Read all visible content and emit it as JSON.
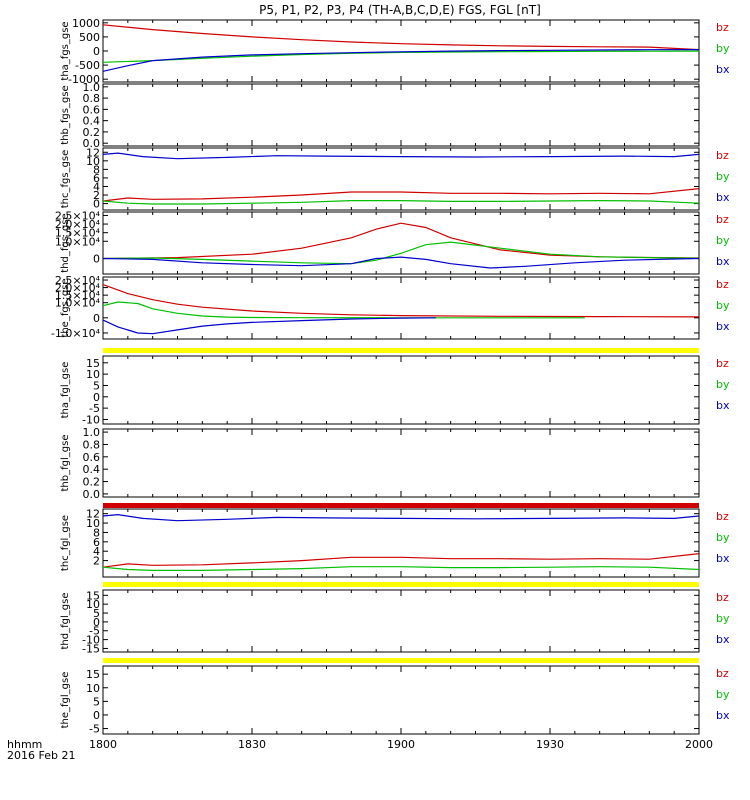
{
  "title": "P5, P1, P2, P3, P4 (TH-A,B,C,D,E) FGS, FGL [nT]",
  "time_label": "hhmm",
  "date_label": "2016 Feb 21",
  "time_ticks": [
    "1800",
    "1830",
    "1900",
    "1930",
    "2000"
  ],
  "colors": {
    "bz": "#d00000",
    "by": "#00c000",
    "bx": "#0000cc",
    "flag": "#ffff00"
  },
  "chart_data": [
    {
      "type": "line",
      "name": "tha_fgs_gse",
      "ylabel": "tha_fgs_gse",
      "ylim": [
        -1100,
        1100
      ],
      "yticks": [
        "1000",
        "500",
        "0",
        "-500",
        "-1000"
      ],
      "legend": [
        "bz",
        "by",
        "bx"
      ],
      "x_minutes": [
        0,
        120
      ],
      "series": [
        {
          "name": "bz",
          "x": [
            0,
            10,
            20,
            30,
            40,
            50,
            60,
            70,
            80,
            90,
            100,
            110,
            120
          ],
          "values": [
            930,
            760,
            620,
            500,
            400,
            320,
            260,
            215,
            185,
            165,
            150,
            140,
            50
          ]
        },
        {
          "name": "by",
          "x": [
            0,
            10,
            20,
            30,
            40,
            50,
            60,
            70,
            80,
            90,
            100,
            110,
            120
          ],
          "values": [
            -400,
            -340,
            -260,
            -185,
            -125,
            -80,
            -50,
            -35,
            -25,
            -18,
            -12,
            -8,
            -5
          ]
        },
        {
          "name": "bx",
          "x": [
            0,
            5,
            10,
            20,
            30,
            40,
            50,
            60,
            70,
            80,
            90,
            100,
            110,
            120
          ],
          "values": [
            -720,
            -520,
            -340,
            -215,
            -140,
            -95,
            -60,
            -30,
            -5,
            15,
            25,
            35,
            45,
            50
          ]
        }
      ]
    },
    {
      "type": "line",
      "name": "thb_fgs_gse",
      "ylabel": "thb_fgs_gse",
      "ylim": [
        -0.05,
        1.05
      ],
      "yticks": [
        "1.0",
        "0.8",
        "0.6",
        "0.4",
        "0.2",
        "0.0"
      ],
      "legend": [],
      "series": []
    },
    {
      "type": "line",
      "name": "thc_fgs_gse",
      "ylabel": "thc_fgs_gse",
      "ylim": [
        -1.5,
        13
      ],
      "yticks": [
        "12",
        "10",
        "8",
        "6",
        "4",
        "2",
        "0"
      ],
      "legend": [
        "bz",
        "by",
        "bx"
      ],
      "series": [
        {
          "name": "bx",
          "x": [
            0,
            3,
            8,
            15,
            25,
            35,
            45,
            60,
            75,
            90,
            105,
            115,
            120
          ],
          "values": [
            11.5,
            11.8,
            11.0,
            10.5,
            10.8,
            11.2,
            11.1,
            11.0,
            10.9,
            11.0,
            11.1,
            11.0,
            11.5
          ]
        },
        {
          "name": "bz",
          "x": [
            0,
            5,
            10,
            20,
            30,
            40,
            50,
            60,
            70,
            80,
            90,
            100,
            110,
            120
          ],
          "values": [
            0.6,
            1.3,
            1.0,
            1.1,
            1.5,
            2.0,
            2.7,
            2.7,
            2.4,
            2.4,
            2.3,
            2.4,
            2.3,
            3.5
          ]
        },
        {
          "name": "by",
          "x": [
            0,
            5,
            10,
            20,
            30,
            40,
            50,
            60,
            70,
            80,
            90,
            100,
            110,
            120
          ],
          "values": [
            0.6,
            0.1,
            -0.1,
            -0.1,
            0.1,
            0.3,
            0.7,
            0.7,
            0.5,
            0.5,
            0.6,
            0.7,
            0.6,
            0.1
          ]
        }
      ]
    },
    {
      "type": "line",
      "name": "thd_fgs_gse",
      "ylabel": "thd_fgs_gse",
      "ylim": [
        -9000,
        27000
      ],
      "yticks": [
        "2.5×10⁴",
        "2.0×10⁴",
        "1.5×10⁴",
        "1.0×10⁴",
        "5.0×10³",
        "0",
        "-5.0×10³"
      ],
      "legend": [
        "bz",
        "by",
        "bx"
      ],
      "series": [
        {
          "name": "bz",
          "x": [
            0,
            15,
            30,
            40,
            50,
            55,
            60,
            65,
            70,
            80,
            90,
            100,
            110,
            120
          ],
          "values": [
            0,
            500,
            2500,
            6000,
            12000,
            17000,
            20500,
            18000,
            12000,
            5000,
            2000,
            1000,
            600,
            300
          ]
        },
        {
          "name": "by",
          "x": [
            0,
            10,
            20,
            30,
            40,
            50,
            55,
            60,
            65,
            70,
            80,
            90,
            100,
            110,
            120
          ],
          "values": [
            0,
            300,
            -500,
            -1500,
            -2500,
            -3000,
            -1000,
            3000,
            8000,
            9500,
            6000,
            2500,
            1000,
            500,
            200
          ]
        },
        {
          "name": "bx",
          "x": [
            0,
            10,
            20,
            30,
            40,
            50,
            55,
            60,
            65,
            70,
            78,
            85,
            95,
            105,
            115,
            120
          ],
          "values": [
            0,
            -500,
            -2500,
            -3500,
            -4200,
            -3000,
            0,
            800,
            -500,
            -3000,
            -5500,
            -4500,
            -2500,
            -1000,
            -300,
            0
          ]
        }
      ]
    },
    {
      "type": "line",
      "name": "the_fgs_gse",
      "ylabel": "the_fgs_gse",
      "ylim": [
        -14000,
        27000
      ],
      "yticks": [
        "2.5×10⁴",
        "2.0×10⁴",
        "1.5×10⁴",
        "1.0×10⁴",
        "5.0×10³",
        "0",
        "-5.0×10³",
        "-1.0×10⁴"
      ],
      "legend": [
        "bz",
        "by",
        "bx"
      ],
      "series": [
        {
          "name": "bz",
          "x": [
            0,
            5,
            10,
            15,
            20,
            30,
            40,
            50,
            60,
            80,
            100,
            120
          ],
          "values": [
            22000,
            16000,
            12000,
            9000,
            7000,
            4500,
            3000,
            2000,
            1500,
            1000,
            800,
            600
          ]
        },
        {
          "name": "by",
          "x": [
            0,
            3,
            7,
            10,
            15,
            20,
            25,
            30,
            40,
            60,
            80,
            97
          ],
          "values": [
            8000,
            10500,
            9500,
            6000,
            3000,
            1200,
            500,
            200,
            100,
            0,
            0,
            0
          ]
        },
        {
          "name": "bx",
          "x": [
            0,
            3,
            7,
            10,
            15,
            20,
            25,
            30,
            40,
            50,
            60,
            67
          ],
          "values": [
            -1500,
            -6000,
            -10000,
            -10500,
            -8000,
            -5500,
            -4000,
            -3000,
            -1800,
            -800,
            -200,
            0
          ]
        }
      ]
    },
    {
      "type": "line",
      "name": "tha_fgl_gse",
      "ylabel": "tha_fgl_gse",
      "ylim": [
        -12,
        18
      ],
      "yticks": [
        "15",
        "10",
        "5",
        "0",
        "-5",
        "-10"
      ],
      "legend": [
        "bz",
        "by",
        "bx"
      ],
      "series": []
    },
    {
      "type": "line",
      "name": "thb_fgl_gse",
      "ylabel": "thb_fgl_gse",
      "ylim": [
        -0.05,
        1.05
      ],
      "yticks": [
        "1.0",
        "0.8",
        "0.6",
        "0.4",
        "0.2",
        "0.0"
      ],
      "legend": [],
      "series": []
    },
    {
      "type": "line",
      "name": "thc_fgl_gse",
      "ylabel": "thc_fgl_gse",
      "ylim": [
        -1.5,
        13
      ],
      "yticks": [
        "12",
        "10",
        "8",
        "6",
        "4",
        "2"
      ],
      "legend": [
        "bz",
        "by",
        "bx"
      ],
      "series": [
        {
          "name": "bx",
          "x": [
            0,
            3,
            8,
            15,
            25,
            35,
            45,
            60,
            75,
            90,
            105,
            115,
            120
          ],
          "values": [
            11.5,
            11.8,
            11.0,
            10.5,
            10.8,
            11.2,
            11.1,
            11.0,
            10.9,
            11.0,
            11.1,
            11.0,
            11.5
          ]
        },
        {
          "name": "bz",
          "x": [
            0,
            5,
            10,
            20,
            30,
            40,
            50,
            60,
            70,
            80,
            90,
            100,
            110,
            120
          ],
          "values": [
            0.6,
            1.3,
            1.0,
            1.1,
            1.5,
            2.0,
            2.7,
            2.7,
            2.4,
            2.4,
            2.3,
            2.4,
            2.3,
            3.5
          ]
        },
        {
          "name": "by",
          "x": [
            0,
            5,
            10,
            20,
            30,
            40,
            50,
            60,
            70,
            80,
            90,
            100,
            110,
            120
          ],
          "values": [
            0.6,
            0.1,
            -0.1,
            -0.1,
            0.1,
            0.3,
            0.7,
            0.7,
            0.5,
            0.5,
            0.6,
            0.7,
            0.6,
            0.1
          ]
        }
      ]
    },
    {
      "type": "line",
      "name": "thd_fgl_gse",
      "ylabel": "thd_fgl_gse",
      "ylim": [
        -17,
        18
      ],
      "yticks": [
        "15",
        "10",
        "5",
        "0",
        "-5",
        "-10",
        "-15"
      ],
      "legend": [
        "bz",
        "by",
        "bx"
      ],
      "series": []
    },
    {
      "type": "line",
      "name": "the_fgl_gse",
      "ylabel": "the_fgl_gse",
      "ylim": [
        -7,
        18
      ],
      "yticks": [
        "15",
        "10",
        "5",
        "0",
        "-5"
      ],
      "legend": [
        "bz",
        "by",
        "bx"
      ],
      "series": []
    }
  ]
}
